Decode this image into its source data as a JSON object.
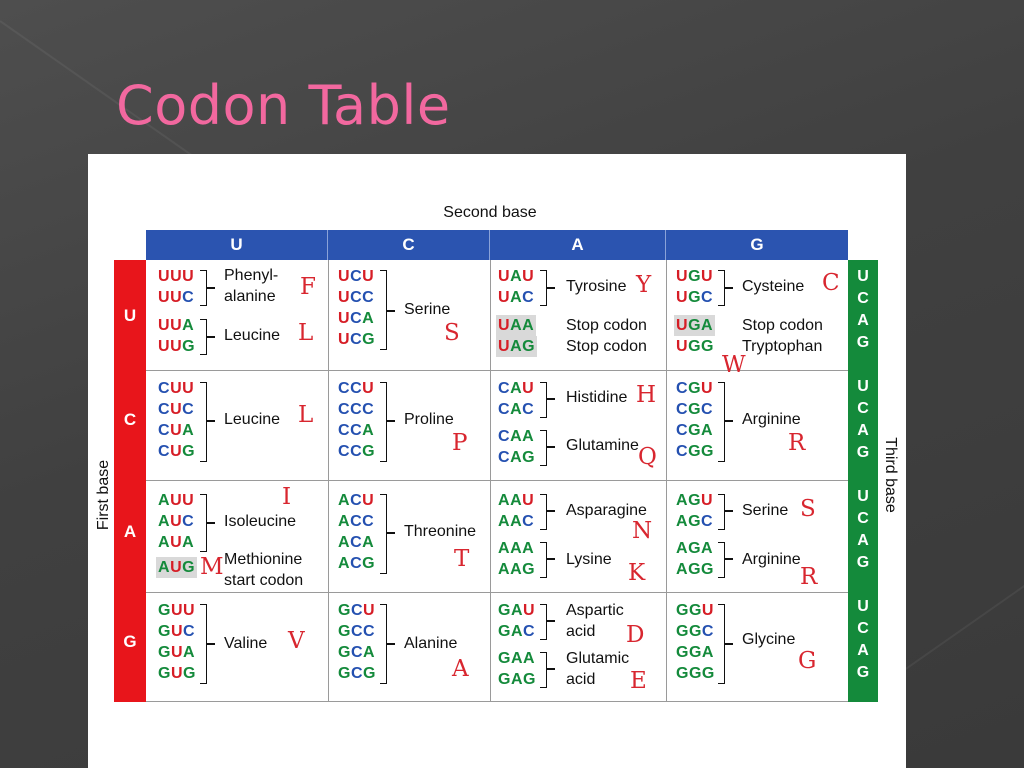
{
  "slide": {
    "title": "Codon Table"
  },
  "table": {
    "second_base_label": "Second base",
    "first_base_label": "First base",
    "third_base_label": "Third base",
    "bases": [
      "U",
      "C",
      "A",
      "G"
    ],
    "third_base_letters": [
      "U",
      "C",
      "A",
      "G"
    ],
    "cells": {
      "UU": {
        "codons": [
          "UUU",
          "UUC",
          "UUA",
          "UUG"
        ],
        "aa": [
          "Phenyl-",
          "alanine",
          "Leucine"
        ],
        "letters": [
          "F",
          "L"
        ]
      },
      "UC": {
        "codons": [
          "UCU",
          "UCC",
          "UCA",
          "UCG"
        ],
        "aa": [
          "Serine"
        ],
        "letters": [
          "S"
        ]
      },
      "UA": {
        "codons": [
          "UAU",
          "UAC",
          "UAA",
          "UAG"
        ],
        "aa": [
          "Tyrosine",
          "Stop codon",
          "Stop codon"
        ],
        "letters": [
          "Y"
        ]
      },
      "UG": {
        "codons": [
          "UGU",
          "UGC",
          "UGA",
          "UGG"
        ],
        "aa": [
          "Cysteine",
          "Stop codon",
          "Tryptophan"
        ],
        "letters": [
          "C",
          "W"
        ]
      },
      "CU": {
        "codons": [
          "CUU",
          "CUC",
          "CUA",
          "CUG"
        ],
        "aa": [
          "Leucine"
        ],
        "letters": [
          "L"
        ]
      },
      "CC": {
        "codons": [
          "CCU",
          "CCC",
          "CCA",
          "CCG"
        ],
        "aa": [
          "Proline"
        ],
        "letters": [
          "P"
        ]
      },
      "CA": {
        "codons": [
          "CAU",
          "CAC",
          "CAA",
          "CAG"
        ],
        "aa": [
          "Histidine",
          "Glutamine"
        ],
        "letters": [
          "H",
          "Q"
        ]
      },
      "CG": {
        "codons": [
          "CGU",
          "CGC",
          "CGA",
          "CGG"
        ],
        "aa": [
          "Arginine"
        ],
        "letters": [
          "R"
        ]
      },
      "AU": {
        "codons": [
          "AUU",
          "AUC",
          "AUA",
          "AUG"
        ],
        "aa": [
          "Isoleucine",
          "Methionine",
          "start codon"
        ],
        "letters": [
          "I",
          "M"
        ]
      },
      "AC": {
        "codons": [
          "ACU",
          "ACC",
          "ACA",
          "ACG"
        ],
        "aa": [
          "Threonine"
        ],
        "letters": [
          "T"
        ]
      },
      "AA": {
        "codons": [
          "AAU",
          "AAC",
          "AAA",
          "AAG"
        ],
        "aa": [
          "Asparagine",
          "Lysine"
        ],
        "letters": [
          "N",
          "K"
        ]
      },
      "AG": {
        "codons": [
          "AGU",
          "AGC",
          "AGA",
          "AGG"
        ],
        "aa": [
          "Serine",
          "Arginine"
        ],
        "letters": [
          "S",
          "R"
        ]
      },
      "GU": {
        "codons": [
          "GUU",
          "GUC",
          "GUA",
          "GUG"
        ],
        "aa": [
          "Valine"
        ],
        "letters": [
          "V"
        ]
      },
      "GC": {
        "codons": [
          "GCU",
          "GCC",
          "GCA",
          "GCG"
        ],
        "aa": [
          "Alanine"
        ],
        "letters": [
          "A"
        ]
      },
      "GA": {
        "codons": [
          "GAU",
          "GAC",
          "GAA",
          "GAG"
        ],
        "aa": [
          "Aspartic",
          "acid",
          "Glutamic",
          "acid"
        ],
        "letters": [
          "D",
          "E"
        ]
      },
      "GG": {
        "codons": [
          "GGU",
          "GGC",
          "GGA",
          "GGG"
        ],
        "aa": [
          "Glycine"
        ],
        "letters": [
          "G"
        ]
      }
    }
  },
  "colors": {
    "title": "#f2689f",
    "first_base": "#e8151b",
    "second_base": "#2b54b0",
    "third_base": "#148a3b",
    "U": "#d61d26",
    "C": "#2450b0",
    "A": "#148a3b",
    "G": "#148a3b",
    "handwritten": "#d8262f"
  }
}
